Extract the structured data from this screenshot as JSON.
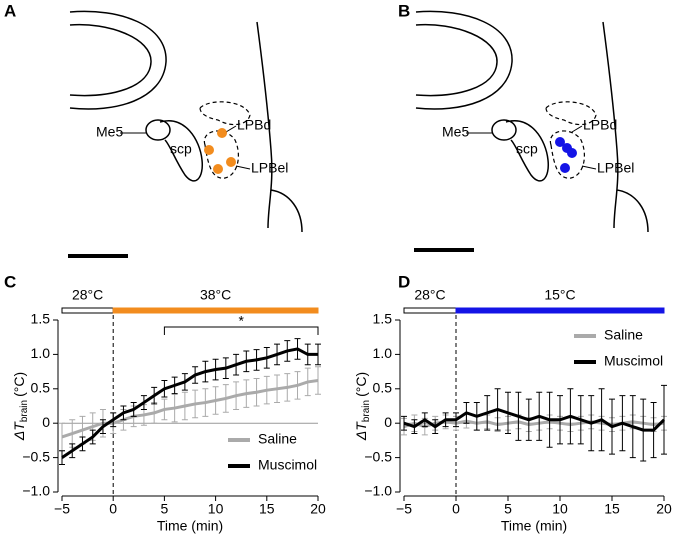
{
  "panel_labels": [
    "A",
    "B",
    "C",
    "D"
  ],
  "diagrams": [
    {
      "labels": {
        "me5": "Me5",
        "scp": "scp",
        "lpbd": "LPBd",
        "lpbel": "LPBel"
      },
      "dot_color": "#f28c1e"
    },
    {
      "labels": {
        "me5": "Me5",
        "scp": "scp",
        "lpbd": "LPBd",
        "lpbel": "LPBel"
      },
      "dot_color": "#1414e6"
    }
  ],
  "chart_data": [
    {
      "type": "line",
      "xlabel": "Time (min)",
      "ylabel": {
        "symbol": "ΔT",
        "subscript": "brain",
        "unit": "(°C)"
      },
      "x": [
        -5,
        -4,
        -3,
        -2,
        -1,
        0,
        1,
        2,
        3,
        4,
        5,
        6,
        7,
        8,
        9,
        10,
        11,
        12,
        13,
        14,
        15,
        16,
        17,
        18,
        19,
        20
      ],
      "series": [
        {
          "name": "Saline",
          "color": "#aaaaaa",
          "values": [
            -0.2,
            -0.15,
            -0.1,
            -0.05,
            0,
            0,
            0.05,
            0.1,
            0.12,
            0.15,
            0.2,
            0.22,
            0.25,
            0.28,
            0.3,
            0.33,
            0.36,
            0.4,
            0.43,
            0.45,
            0.48,
            0.5,
            0.52,
            0.55,
            0.6,
            0.62
          ],
          "errors": [
            0.2,
            0.2,
            0.2,
            0.2,
            0.2,
            0.15,
            0.15,
            0.15,
            0.15,
            0.15,
            0.15,
            0.2,
            0.2,
            0.2,
            0.2,
            0.2,
            0.2,
            0.2,
            0.2,
            0.2,
            0.2,
            0.2,
            0.2,
            0.2,
            0.2,
            0.2
          ]
        },
        {
          "name": "Muscimol",
          "color": "#000000",
          "values": [
            -0.5,
            -0.4,
            -0.3,
            -0.2,
            -0.05,
            0.05,
            0.15,
            0.2,
            0.3,
            0.4,
            0.5,
            0.55,
            0.6,
            0.7,
            0.75,
            0.78,
            0.8,
            0.85,
            0.9,
            0.92,
            0.95,
            1.0,
            1.05,
            1.08,
            1.0,
            1.0
          ],
          "errors": [
            0.1,
            0.1,
            0.1,
            0.1,
            0.1,
            0.1,
            0.1,
            0.1,
            0.1,
            0.12,
            0.12,
            0.12,
            0.12,
            0.12,
            0.15,
            0.15,
            0.15,
            0.15,
            0.15,
            0.15,
            0.15,
            0.15,
            0.15,
            0.15,
            0.15,
            0.15
          ]
        }
      ],
      "stimulus": [
        {
          "label": "28°C",
          "start": -5,
          "end": 0,
          "color": "#ffffff"
        },
        {
          "label": "38°C",
          "start": 0,
          "end": 20,
          "color": "#f28c1e"
        }
      ],
      "significance": {
        "start": 5,
        "end": 20,
        "label": "*"
      },
      "zero_line": 0,
      "onset_line": 0,
      "legend": "lower right",
      "xlim": [
        -5,
        20
      ],
      "xticks": [
        {
          "value": -5,
          "label": "−5"
        },
        0,
        5,
        10,
        15,
        20
      ],
      "ylim": [
        -1.0,
        1.5
      ],
      "yticks": [
        {
          "value": -1.0,
          "label": "−1.0"
        },
        {
          "value": -0.5,
          "label": "−0.5"
        },
        0,
        0.5,
        {
          "value": 1.0,
          "label": "1.0"
        },
        1.5
      ]
    },
    {
      "type": "line",
      "xlabel": "Time (min)",
      "ylabel": {
        "symbol": "ΔT",
        "subscript": "brain",
        "unit": "(°C)"
      },
      "x": [
        -5,
        -4,
        -3,
        -2,
        -1,
        0,
        1,
        2,
        3,
        4,
        5,
        6,
        7,
        8,
        9,
        10,
        11,
        12,
        13,
        14,
        15,
        16,
        17,
        18,
        19,
        20
      ],
      "series": [
        {
          "name": "Saline",
          "color": "#aaaaaa",
          "values": [
            -0.05,
            0,
            -0.05,
            0,
            0.02,
            0,
            0.03,
            0,
            0.02,
            -0.02,
            0,
            0.02,
            -0.02,
            0,
            0.02,
            0,
            -0.02,
            0,
            0.02,
            0,
            -0.02,
            0,
            0.02,
            0,
            -0.02,
            0
          ],
          "errors": [
            0.12,
            0.12,
            0.12,
            0.1,
            0.1,
            0.1,
            0.1,
            0.1,
            0.1,
            0.1,
            0.1,
            0.1,
            0.1,
            0.1,
            0.1,
            0.1,
            0.1,
            0.1,
            0.1,
            0.1,
            0.1,
            0.1,
            0.1,
            0.1,
            0.1,
            0.1
          ]
        },
        {
          "name": "Muscimol",
          "color": "#000000",
          "values": [
            0,
            -0.05,
            0.05,
            -0.05,
            0.05,
            0.05,
            0.15,
            0.1,
            0.15,
            0.2,
            0.15,
            0.1,
            0.05,
            0.1,
            0.05,
            0.05,
            0.1,
            0.05,
            0,
            0.05,
            -0.05,
            0,
            -0.05,
            -0.1,
            -0.1,
            0.05
          ],
          "errors": [
            0.1,
            0.1,
            0.1,
            0.1,
            0.1,
            0.1,
            0.15,
            0.2,
            0.25,
            0.3,
            0.3,
            0.35,
            0.3,
            0.35,
            0.4,
            0.35,
            0.4,
            0.35,
            0.4,
            0.45,
            0.4,
            0.4,
            0.45,
            0.45,
            0.4,
            0.5
          ]
        }
      ],
      "stimulus": [
        {
          "label": "28°C",
          "start": -5,
          "end": 0,
          "color": "#ffffff"
        },
        {
          "label": "15°C",
          "start": 0,
          "end": 20,
          "color": "#1414e6"
        }
      ],
      "zero_line": 0,
      "onset_line": 0,
      "legend": "upper right",
      "xlim": [
        -5,
        20
      ],
      "xticks": [
        {
          "value": -5,
          "label": "−5"
        },
        0,
        5,
        10,
        15,
        20
      ],
      "ylim": [
        -1.0,
        1.5
      ],
      "yticks": [
        {
          "value": -1.0,
          "label": "−1.0"
        },
        {
          "value": -0.5,
          "label": "−0.5"
        },
        0,
        0.5,
        {
          "value": 1.0,
          "label": "1.0"
        },
        1.5
      ]
    }
  ]
}
